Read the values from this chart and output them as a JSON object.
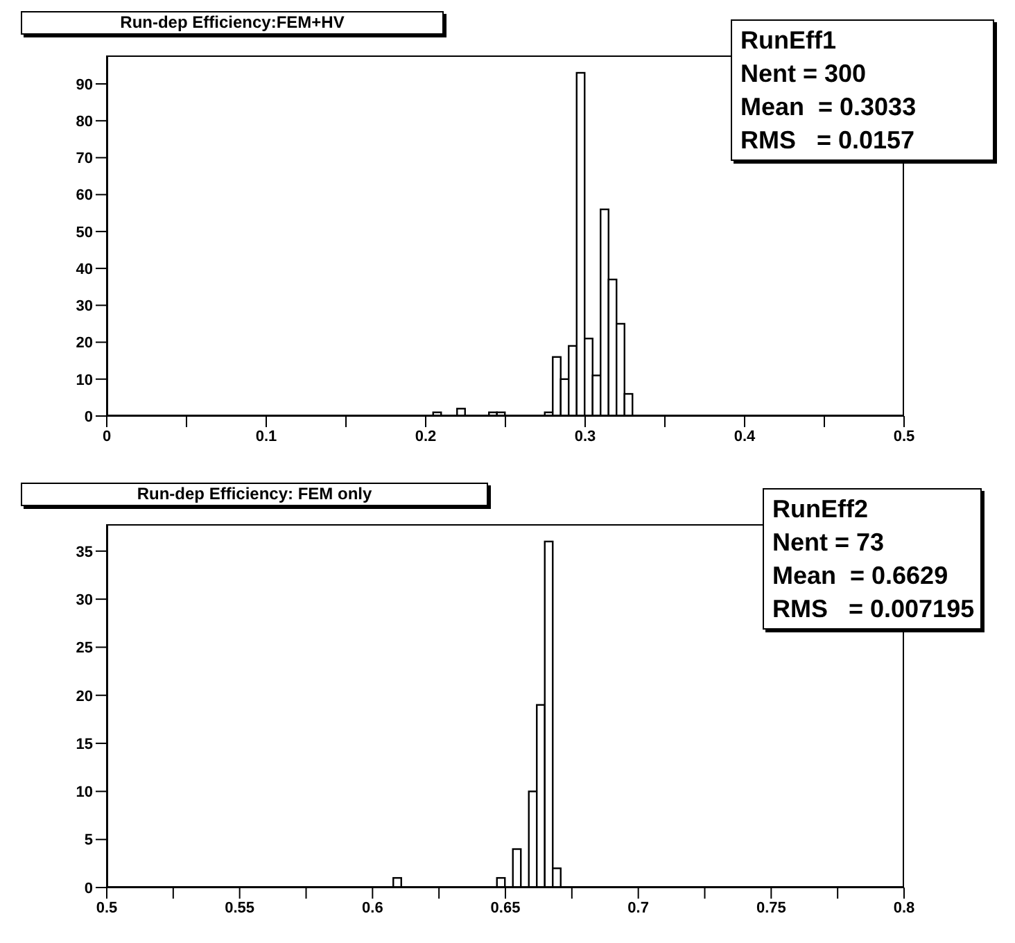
{
  "chart_data": [
    {
      "type": "histogram",
      "title": "Run-dep Efficiency:FEM+HV",
      "bins": [
        0.205,
        0.21,
        0.215,
        0.22,
        0.225,
        0.23,
        0.235,
        0.24,
        0.245,
        0.25,
        0.255,
        0.26,
        0.265,
        0.27,
        0.275,
        0.28,
        0.285,
        0.29,
        0.295,
        0.3,
        0.305,
        0.31,
        0.315,
        0.32,
        0.325,
        0.33
      ],
      "values": [
        1,
        0,
        0,
        2,
        0,
        0,
        0,
        1,
        1,
        0,
        0,
        0,
        0,
        0,
        1,
        16,
        10,
        19,
        93,
        21,
        11,
        56,
        37,
        25,
        6
      ],
      "color": "#000000",
      "xlim": [
        0,
        0.5
      ],
      "xticks": [
        0,
        {
          "value": 0.05,
          "label": null
        },
        0.1,
        {
          "value": 0.15,
          "label": null
        },
        0.2,
        {
          "value": 0.25,
          "label": null
        },
        0.3,
        {
          "value": 0.35,
          "label": null
        },
        0.4,
        {
          "value": 0.45,
          "label": null
        },
        0.5
      ],
      "ylim": [
        0,
        97.7
      ],
      "yticks": [
        0,
        10,
        20,
        30,
        40,
        50,
        60,
        70,
        80,
        90
      ],
      "grid": false,
      "legend": false,
      "annotations": [
        "RunEff1",
        "Nent = 300",
        "Mean  = 0.3033",
        "RMS   = 0.0157"
      ]
    },
    {
      "type": "histogram",
      "title": "Run-dep Efficiency: FEM only",
      "bins": [
        0.608,
        0.611,
        0.614,
        0.617,
        0.62,
        0.623,
        0.626,
        0.629,
        0.632,
        0.635,
        0.638,
        0.641,
        0.644,
        0.647,
        0.65,
        0.653,
        0.656,
        0.659,
        0.662,
        0.665,
        0.668,
        0.671
      ],
      "values": [
        1,
        0,
        0,
        0,
        0,
        0,
        0,
        0,
        0,
        0,
        0,
        0,
        0,
        1,
        0,
        4,
        0,
        10,
        19,
        36,
        2
      ],
      "color": "#000000",
      "xlim": [
        0.5,
        0.8
      ],
      "xticks": [
        0.5,
        {
          "value": 0.525,
          "label": null
        },
        0.55,
        {
          "value": 0.575,
          "label": null
        },
        0.6,
        {
          "value": 0.625,
          "label": null
        },
        0.65,
        {
          "value": 0.675,
          "label": null
        },
        0.7,
        {
          "value": 0.725,
          "label": null
        },
        0.75,
        {
          "value": 0.775,
          "label": null
        },
        0.8
      ],
      "ylim": [
        0,
        37.8
      ],
      "yticks": [
        0,
        5,
        10,
        15,
        20,
        25,
        30,
        35
      ],
      "grid": false,
      "legend": false,
      "annotations": [
        "RunEff2",
        "Nent = 73",
        "Mean  = 0.6629",
        "RMS   = 0.007195"
      ]
    }
  ]
}
